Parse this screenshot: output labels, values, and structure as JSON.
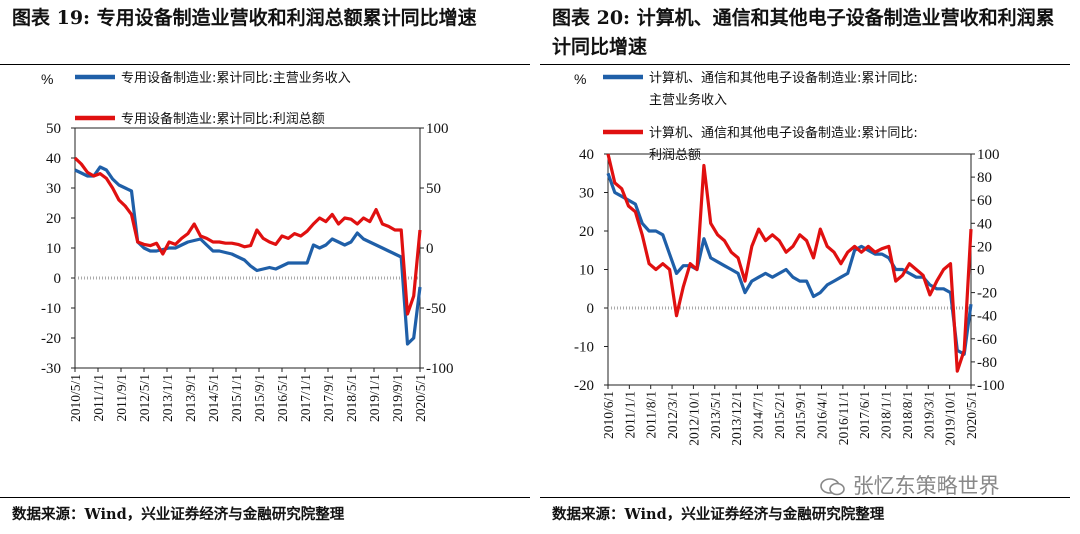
{
  "panels": [
    {
      "title": "图表 19:  专用设备制造业营收和利润总额累计同比增速",
      "source": "数据来源：Wind，兴业证券经济与金融研究院整理"
    },
    {
      "title": "图表 20:  计算机、通信和其他电子设备制造业营收和利润累计同比增速",
      "source": "数据来源：Wind，兴业证券经济与金融研究院整理"
    }
  ],
  "watermark": "张忆东策略世界",
  "chart_data": [
    {
      "type": "line",
      "title": "",
      "unit_label": "%",
      "x_ticks": [
        "2010/5/1",
        "2011/1/1",
        "2011/9/1",
        "2012/5/1",
        "2013/1/1",
        "2013/9/1",
        "2014/5/1",
        "2015/1/1",
        "2015/9/1",
        "2016/5/1",
        "2017/1/1",
        "2017/9/1",
        "2018/5/1",
        "2019/1/1",
        "2019/9/1",
        "2020/5/1"
      ],
      "x_range": [
        "2010/5/1",
        "2020/5/1"
      ],
      "y_left": {
        "range": [
          -30,
          50
        ],
        "ticks": [
          50,
          40,
          30,
          20,
          10,
          0,
          -10,
          -20,
          -30
        ]
      },
      "y_right": {
        "range": [
          -100,
          100
        ],
        "ticks": [
          100,
          50,
          0,
          -50,
          -100
        ]
      },
      "series": [
        {
          "name": "专用设备制造业:累计同比:主营业务收入",
          "axis": "left",
          "color": "#1f5fa8",
          "values": [
            [
              0,
              36
            ],
            [
              1,
              35
            ],
            [
              2,
              34
            ],
            [
              3,
              34
            ],
            [
              4,
              37
            ],
            [
              5,
              36
            ],
            [
              6,
              33
            ],
            [
              7,
              31
            ],
            [
              8,
              30
            ],
            [
              9,
              29
            ],
            [
              10,
              12
            ],
            [
              11,
              10
            ],
            [
              12,
              9
            ],
            [
              13,
              9
            ],
            [
              14,
              9.5
            ],
            [
              15,
              10
            ],
            [
              16,
              10
            ],
            [
              17,
              11
            ],
            [
              18,
              12
            ],
            [
              19,
              12.5
            ],
            [
              20,
              13
            ],
            [
              21,
              11
            ],
            [
              22,
              9
            ],
            [
              23,
              9
            ],
            [
              24,
              8.5
            ],
            [
              25,
              8
            ],
            [
              26,
              7
            ],
            [
              27,
              6
            ],
            [
              28,
              4
            ],
            [
              29,
              2.5
            ],
            [
              30,
              3
            ],
            [
              31,
              3.5
            ],
            [
              32,
              3
            ],
            [
              33,
              4
            ],
            [
              34,
              5
            ],
            [
              35,
              5
            ],
            [
              36,
              5
            ],
            [
              37,
              5
            ],
            [
              38,
              11
            ],
            [
              39,
              10
            ],
            [
              40,
              11
            ],
            [
              41,
              13
            ],
            [
              42,
              12
            ],
            [
              43,
              11
            ],
            [
              44,
              12
            ],
            [
              45,
              15
            ],
            [
              46,
              13
            ],
            [
              47,
              12
            ],
            [
              48,
              11
            ],
            [
              49,
              10
            ],
            [
              50,
              9
            ],
            [
              51,
              8
            ],
            [
              52,
              7
            ],
            [
              53,
              -22
            ],
            [
              54,
              -20
            ],
            [
              55,
              -3
            ]
          ]
        },
        {
          "name": "专用设备制造业:累计同比:利润总额",
          "axis": "right",
          "color": "#e01010",
          "values": [
            [
              0,
              75
            ],
            [
              1,
              70
            ],
            [
              2,
              63
            ],
            [
              3,
              60
            ],
            [
              4,
              62
            ],
            [
              5,
              58
            ],
            [
              6,
              50
            ],
            [
              7,
              40
            ],
            [
              8,
              35
            ],
            [
              9,
              28
            ],
            [
              10,
              5
            ],
            [
              11,
              3
            ],
            [
              12,
              2
            ],
            [
              13,
              4
            ],
            [
              14,
              -5
            ],
            [
              15,
              5
            ],
            [
              16,
              3
            ],
            [
              17,
              8
            ],
            [
              18,
              12
            ],
            [
              19,
              20
            ],
            [
              20,
              10
            ],
            [
              21,
              8
            ],
            [
              22,
              5
            ],
            [
              23,
              5
            ],
            [
              24,
              4
            ],
            [
              25,
              4
            ],
            [
              26,
              3
            ],
            [
              27,
              1
            ],
            [
              28,
              2
            ],
            [
              29,
              15
            ],
            [
              30,
              8
            ],
            [
              31,
              5
            ],
            [
              32,
              3
            ],
            [
              33,
              10
            ],
            [
              34,
              8
            ],
            [
              35,
              12
            ],
            [
              36,
              10
            ],
            [
              37,
              14
            ],
            [
              38,
              20
            ],
            [
              39,
              25
            ],
            [
              40,
              22
            ],
            [
              41,
              28
            ],
            [
              42,
              20
            ],
            [
              43,
              25
            ],
            [
              44,
              24
            ],
            [
              45,
              20
            ],
            [
              46,
              25
            ],
            [
              47,
              22
            ],
            [
              48,
              32
            ],
            [
              49,
              20
            ],
            [
              50,
              18
            ],
            [
              51,
              15
            ],
            [
              52,
              15
            ],
            [
              53,
              -55
            ],
            [
              54,
              -40
            ],
            [
              55,
              15
            ]
          ]
        }
      ]
    },
    {
      "type": "line",
      "title": "",
      "unit_label": "%",
      "x_ticks": [
        "2010/6/1",
        "2011/1/1",
        "2011/8/1",
        "2012/3/1",
        "2012/10/1",
        "2013/5/1",
        "2013/12/1",
        "2014/7/1",
        "2015/2/1",
        "2015/9/1",
        "2016/4/1",
        "2016/11/1",
        "2017/6/1",
        "2018/1/1",
        "2018/8/1",
        "2019/3/1",
        "2019/10/1",
        "2020/5/1"
      ],
      "x_range": [
        "2010/6/1",
        "2020/5/1"
      ],
      "y_left": {
        "range": [
          -20,
          40
        ],
        "ticks": [
          40,
          30,
          20,
          10,
          0,
          -10,
          -20
        ]
      },
      "y_right": {
        "range": [
          -100,
          100
        ],
        "ticks": [
          100,
          80,
          60,
          40,
          20,
          0,
          -20,
          -40,
          -60,
          -80,
          -100
        ]
      },
      "series": [
        {
          "name": "计算机、通信和其他电子设备制造业:累计同比:主营业务收入",
          "axis": "left",
          "color": "#1f5fa8",
          "values": [
            [
              0,
              35
            ],
            [
              1,
              30
            ],
            [
              2,
              29
            ],
            [
              3,
              28
            ],
            [
              4,
              27
            ],
            [
              5,
              22
            ],
            [
              6,
              20
            ],
            [
              7,
              20
            ],
            [
              8,
              19
            ],
            [
              9,
              14
            ],
            [
              10,
              9
            ],
            [
              11,
              11
            ],
            [
              12,
              11
            ],
            [
              13,
              10
            ],
            [
              14,
              18
            ],
            [
              15,
              13
            ],
            [
              16,
              12
            ],
            [
              17,
              11
            ],
            [
              18,
              10
            ],
            [
              19,
              9
            ],
            [
              20,
              4
            ],
            [
              21,
              7
            ],
            [
              22,
              8
            ],
            [
              23,
              9
            ],
            [
              24,
              8
            ],
            [
              25,
              9
            ],
            [
              26,
              10
            ],
            [
              27,
              8
            ],
            [
              28,
              7
            ],
            [
              29,
              7
            ],
            [
              30,
              3
            ],
            [
              31,
              4
            ],
            [
              32,
              6
            ],
            [
              33,
              7
            ],
            [
              34,
              8
            ],
            [
              35,
              9
            ],
            [
              36,
              15
            ],
            [
              37,
              16
            ],
            [
              38,
              15
            ],
            [
              39,
              14
            ],
            [
              40,
              14
            ],
            [
              41,
              13
            ],
            [
              42,
              10
            ],
            [
              43,
              10
            ],
            [
              44,
              9
            ],
            [
              45,
              8
            ],
            [
              46,
              8
            ],
            [
              47,
              6
            ],
            [
              48,
              5
            ],
            [
              49,
              5
            ],
            [
              50,
              4
            ],
            [
              51,
              -11
            ],
            [
              52,
              -12
            ],
            [
              53,
              1
            ]
          ]
        },
        {
          "name": "计算机、通信和其他电子设备制造业:累计同比:利润总额",
          "axis": "right",
          "color": "#e01010",
          "values": [
            [
              0,
              100
            ],
            [
              1,
              75
            ],
            [
              2,
              70
            ],
            [
              3,
              55
            ],
            [
              4,
              50
            ],
            [
              5,
              30
            ],
            [
              6,
              5
            ],
            [
              7,
              0
            ],
            [
              8,
              5
            ],
            [
              9,
              0
            ],
            [
              10,
              -40
            ],
            [
              11,
              -15
            ],
            [
              12,
              5
            ],
            [
              13,
              0
            ],
            [
              14,
              90
            ],
            [
              15,
              40
            ],
            [
              16,
              30
            ],
            [
              17,
              25
            ],
            [
              18,
              15
            ],
            [
              19,
              10
            ],
            [
              20,
              -10
            ],
            [
              21,
              20
            ],
            [
              22,
              35
            ],
            [
              23,
              25
            ],
            [
              24,
              30
            ],
            [
              25,
              25
            ],
            [
              26,
              15
            ],
            [
              27,
              20
            ],
            [
              28,
              30
            ],
            [
              29,
              25
            ],
            [
              30,
              10
            ],
            [
              31,
              35
            ],
            [
              32,
              20
            ],
            [
              33,
              15
            ],
            [
              34,
              5
            ],
            [
              35,
              15
            ],
            [
              36,
              20
            ],
            [
              37,
              15
            ],
            [
              38,
              20
            ],
            [
              39,
              15
            ],
            [
              40,
              18
            ],
            [
              41,
              20
            ],
            [
              42,
              -10
            ],
            [
              43,
              -5
            ],
            [
              44,
              5
            ],
            [
              45,
              0
            ],
            [
              46,
              -5
            ],
            [
              47,
              -22
            ],
            [
              48,
              -10
            ],
            [
              49,
              0
            ],
            [
              50,
              5
            ],
            [
              51,
              -88
            ],
            [
              52,
              -70
            ],
            [
              53,
              35
            ]
          ]
        }
      ]
    }
  ]
}
